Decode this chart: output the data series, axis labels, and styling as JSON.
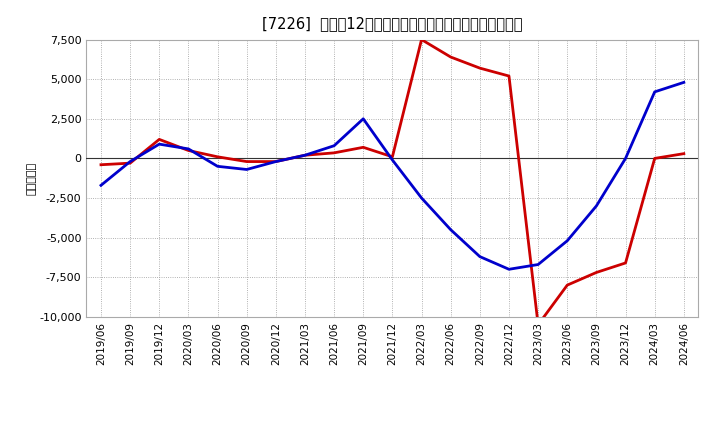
{
  "title": "[7226]  利益だ12か月移動合計の対前年同期増減額の推移",
  "ylabel": "（百万円）",
  "background_color": "#ffffff",
  "plot_bg_color": "#ffffff",
  "grid_color": "#999999",
  "x_labels": [
    "2019/06",
    "2019/09",
    "2019/12",
    "2020/03",
    "2020/06",
    "2020/09",
    "2020/12",
    "2021/03",
    "2021/06",
    "2021/09",
    "2021/12",
    "2022/03",
    "2022/06",
    "2022/09",
    "2022/12",
    "2023/03",
    "2023/06",
    "2023/09",
    "2023/12",
    "2024/03",
    "2024/06"
  ],
  "keijo_rieki": [
    -1700,
    -200,
    900,
    600,
    -500,
    -700,
    -200,
    200,
    800,
    2500,
    -100,
    -2500,
    -4500,
    -6200,
    -7000,
    -6700,
    -5200,
    -3000,
    0,
    4200,
    4800
  ],
  "touki_junrieki": [
    -400,
    -300,
    1200,
    500,
    100,
    -200,
    -200,
    200,
    350,
    700,
    100,
    7500,
    6400,
    5700,
    5200,
    -10500,
    -8000,
    -7200,
    -6600,
    0,
    300
  ],
  "ylim": [
    -10000,
    7500
  ],
  "yticks": [
    -10000,
    -7500,
    -5000,
    -2500,
    0,
    2500,
    5000,
    7500
  ],
  "line_color_keijo": "#0000cc",
  "line_color_touki": "#cc0000",
  "line_width": 2.0
}
